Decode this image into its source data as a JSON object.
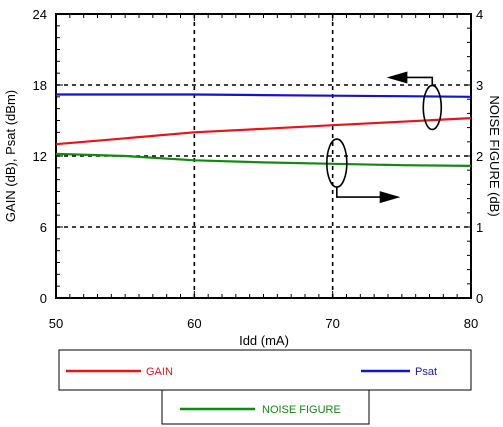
{
  "chart_data": {
    "type": "line",
    "xlabel": "Idd (mA)",
    "ylabel": "GAIN (dB), Psat (dBm)",
    "y2label": "NOISE FIGURE (dB)",
    "xlim": [
      50,
      80
    ],
    "ylim": [
      0,
      24
    ],
    "y2lim": [
      0,
      4
    ],
    "x_ticks": [
      "50",
      "60",
      "70",
      "80"
    ],
    "y_ticks": [
      "0",
      "6",
      "12",
      "18",
      "24"
    ],
    "y2_ticks": [
      "0",
      "1",
      "2",
      "3",
      "4"
    ],
    "grid": "dashed",
    "series": [
      {
        "name": "GAIN",
        "color": "#e8141a",
        "axis": "left",
        "x": [
          50,
          55,
          60,
          65,
          70,
          75,
          80
        ],
        "y": [
          13.0,
          13.5,
          14.0,
          14.3,
          14.6,
          14.9,
          15.2
        ]
      },
      {
        "name": "Psat",
        "color": "#1414c8",
        "axis": "left",
        "x": [
          50,
          55,
          60,
          65,
          70,
          75,
          80
        ],
        "y": [
          17.2,
          17.2,
          17.2,
          17.15,
          17.1,
          17.05,
          17.0
        ]
      },
      {
        "name": "NOISE FIGURE",
        "color": "#118a11",
        "axis": "right",
        "x": [
          50,
          55,
          60,
          65,
          70,
          75,
          80
        ],
        "y": [
          2.03,
          2.0,
          1.94,
          1.91,
          1.89,
          1.87,
          1.86
        ]
      }
    ],
    "legend": {
      "row1": [
        "GAIN",
        "Psat"
      ],
      "row2": [
        "NOISE FIGURE"
      ]
    }
  }
}
